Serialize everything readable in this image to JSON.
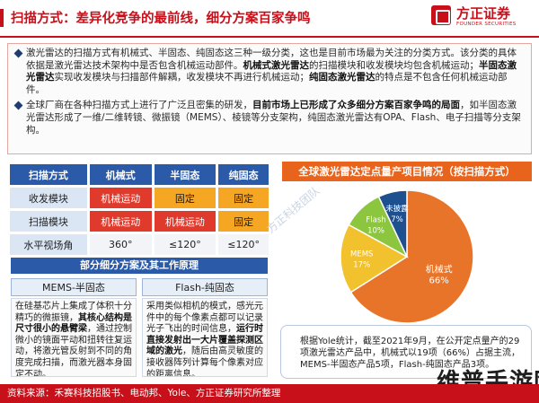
{
  "header": {
    "title": "扫描方式：差异化竞争的最前线，细分方案百家争鸣",
    "logo_cn": "方正证券",
    "logo_en": "FOUNDER SECURITIES"
  },
  "intro": {
    "bullet1": [
      {
        "t": "激光雷达的扫描方式有机械式、半固态、纯固态这三种一级分类，这也是目前市场最为关注的分类方式。该分类的具体依据是激光雷达技术架构中是否包含机械运动部件。",
        "b": false
      },
      {
        "t": "机械式激光雷达",
        "b": true
      },
      {
        "t": "的扫描模块和收发模块均包含机械运动；",
        "b": false
      },
      {
        "t": "半固态激光雷达",
        "b": true
      },
      {
        "t": "实现收发模块与扫描部件解耦，收发模块不再进行机械运动；",
        "b": false
      },
      {
        "t": "纯固态激光雷达",
        "b": true
      },
      {
        "t": "的特点是不包含任何机械运动部件。",
        "b": false
      }
    ],
    "bullet2": [
      {
        "t": "全球厂商在各种扫描方式上进行了广泛且密集的研发，",
        "b": false
      },
      {
        "t": "目前市场上已形成了众多细分方案百家争鸣的局面",
        "b": true
      },
      {
        "t": "，如半固态激光雷达形成了一维/二维转镜、微振镜（MEMS）、棱镜等分支架构，纯固态激光雷达有OPA、Flash、电子扫描等分支架构。",
        "b": false
      }
    ]
  },
  "table": {
    "headers": [
      "扫描方式",
      "机械式",
      "半固态",
      "纯固态"
    ],
    "rows": [
      {
        "label": "收发模块",
        "cells": [
          "机械运动",
          "固定",
          "固定"
        ],
        "styles": [
          "red",
          "orange",
          "orange"
        ]
      },
      {
        "label": "扫描模块",
        "cells": [
          "机械运动",
          "机械运动",
          "固定"
        ],
        "styles": [
          "red",
          "red",
          "orange"
        ]
      },
      {
        "label": "水平视场角",
        "cells": [
          "360°",
          "≤120°",
          "≤120°"
        ],
        "styles": [
          "plain",
          "plain",
          "plain"
        ]
      }
    ]
  },
  "subsection": {
    "banner": "部分细分方案及其工作原理",
    "left_title": "MEMS-半固态",
    "left_body": [
      {
        "t": "在硅基芯片上集成了体积十分精巧的微振镜，",
        "b": false
      },
      {
        "t": "其核心结构是尺寸很小的悬臂梁",
        "b": true
      },
      {
        "t": "，通过控制微小的镜面平动和扭转往复运动，将激光管反射到不同的角度完成扫描，而激光器本身固定不动。",
        "b": false
      }
    ],
    "right_title": "Flash-纯固态",
    "right_body": [
      {
        "t": "采用类似相机的模式，感光元件中的每个像素点都可以记录光子飞出的时间信息，",
        "b": false
      },
      {
        "t": "运行时直接发射出一大片覆盖探测区域的激光",
        "b": true
      },
      {
        "t": "，随后由高灵敏度的接收器阵列计算每个像素对应的距离信息。",
        "b": false
      }
    ]
  },
  "chart_data": {
    "type": "pie",
    "title": "全球激光雷达定点量产项目情况（按扫描方式）",
    "slices": [
      {
        "label": "机械式",
        "value": 66,
        "display": "66%",
        "color": "#e8742a"
      },
      {
        "label": "MEMS",
        "value": 17,
        "display": "17%",
        "color": "#f2c12e"
      },
      {
        "label": "Flash",
        "value": 10,
        "display": "10%",
        "color": "#8cc63f"
      },
      {
        "label": "未披露",
        "value": 7,
        "display": "7%",
        "color": "#1e4f8f"
      }
    ]
  },
  "pie_note": "根据Yole统计，截至2021年9月，在公开定点量产的29项激光雷达产品中，机械式以19项（66%）占据主流，MEMS-半固态产品5项，Flash-纯固态产品3项。",
  "watermark": "方正科技团队",
  "brand_watermark": "维普手游网",
  "footer": "资料来源：禾赛科技招股书、电动邦、Yole、方正证券研究所整理"
}
